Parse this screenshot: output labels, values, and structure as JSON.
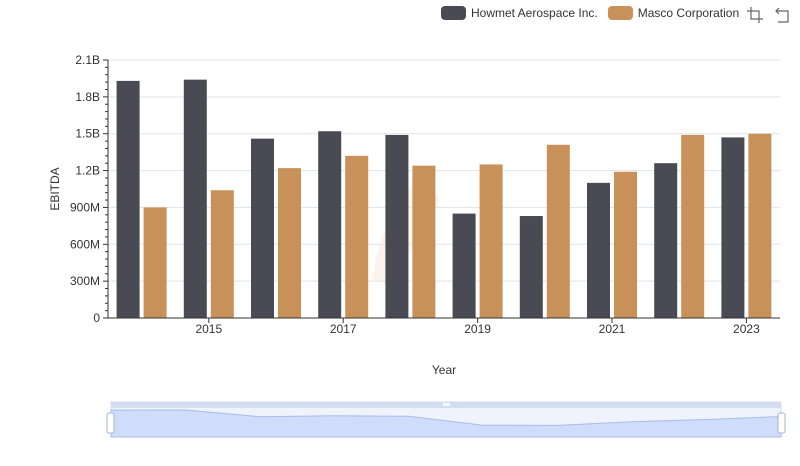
{
  "chart_data": {
    "type": "bar",
    "categories": [
      "2014",
      "2015",
      "2016",
      "2017",
      "2018",
      "2019",
      "2020",
      "2021",
      "2022",
      "2023"
    ],
    "x_tick_labels": [
      "2015",
      "2017",
      "2019",
      "2021",
      "2023"
    ],
    "xlabel": "Year",
    "ylabel": "EBITDA",
    "ylim": [
      0,
      2100000000
    ],
    "y_ticks": [
      {
        "value": 0,
        "label": "0"
      },
      {
        "value": 300000000,
        "label": "300M"
      },
      {
        "value": 600000000,
        "label": "600M"
      },
      {
        "value": 900000000,
        "label": "900M"
      },
      {
        "value": 1200000000,
        "label": "1.2B"
      },
      {
        "value": 1500000000,
        "label": "1.5B"
      },
      {
        "value": 1800000000,
        "label": "1.8B"
      },
      {
        "value": 2100000000,
        "label": "2.1B"
      }
    ],
    "grid": true,
    "legend_position": "top-right",
    "series": [
      {
        "name": "Howmet Aerospace Inc.",
        "color": "#4a4a55",
        "values": [
          1930000000,
          1940000000,
          1460000000,
          1520000000,
          1490000000,
          850000000,
          830000000,
          1100000000,
          1260000000,
          1470000000
        ]
      },
      {
        "name": "Masco Corporation",
        "color": "#c8915a",
        "values": [
          900000000,
          1040000000,
          1220000000,
          1320000000,
          1240000000,
          1250000000,
          1410000000,
          1190000000,
          1490000000,
          1500000000
        ]
      }
    ],
    "data_zoom": {
      "start": 0,
      "end": 100
    }
  },
  "icons": {
    "zoom": "zoom-icon",
    "restore": "restore-icon"
  }
}
